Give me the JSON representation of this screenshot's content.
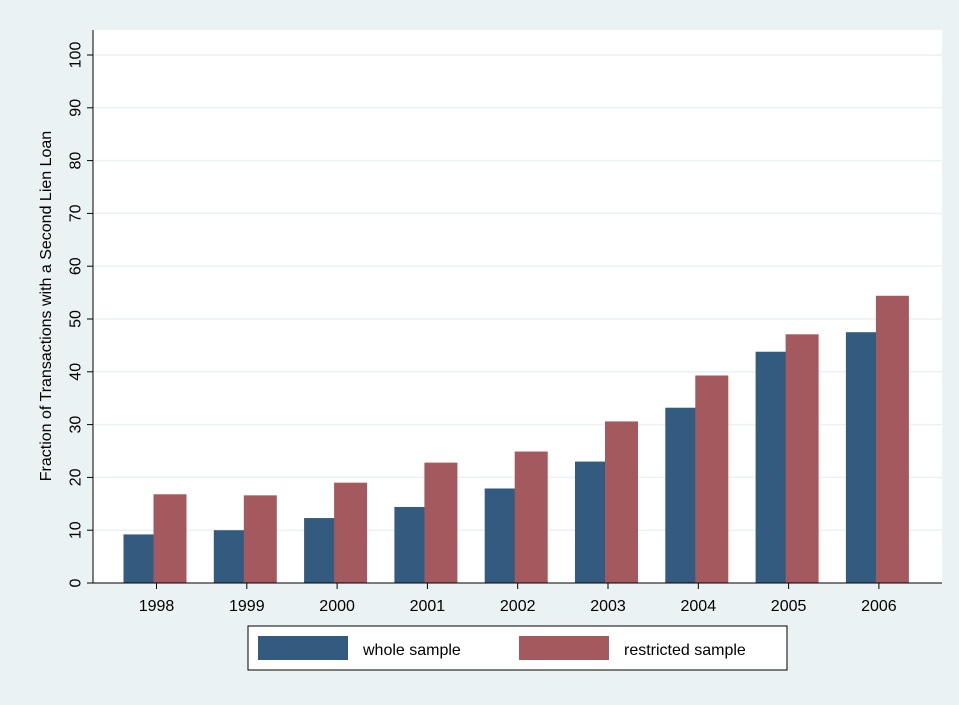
{
  "chart_data": {
    "type": "bar",
    "title": "",
    "xlabel": "",
    "ylabel": "Fraction of Transactions with a Second Lien Loan",
    "categories": [
      "1998",
      "1999",
      "2000",
      "2001",
      "2002",
      "2003",
      "2004",
      "2005",
      "2006"
    ],
    "series": [
      {
        "name": "whole sample",
        "color": "#335a7f",
        "values": [
          9.2,
          10.0,
          12.3,
          14.4,
          17.9,
          23.0,
          33.2,
          43.8,
          47.5
        ]
      },
      {
        "name": "restricted sample",
        "color": "#a3595e",
        "values": [
          16.8,
          16.6,
          19.0,
          22.8,
          24.9,
          30.6,
          39.3,
          47.1,
          54.4
        ]
      }
    ],
    "ylim": [
      0,
      100
    ],
    "yticks": [
      0,
      10,
      20,
      30,
      40,
      50,
      60,
      70,
      80,
      90,
      100
    ],
    "grid": true,
    "legend": "bottom"
  },
  "colors": {
    "outer_background": "#eaf2f3",
    "plot_background": "#ffffff",
    "grid": "#eaf2f3"
  }
}
